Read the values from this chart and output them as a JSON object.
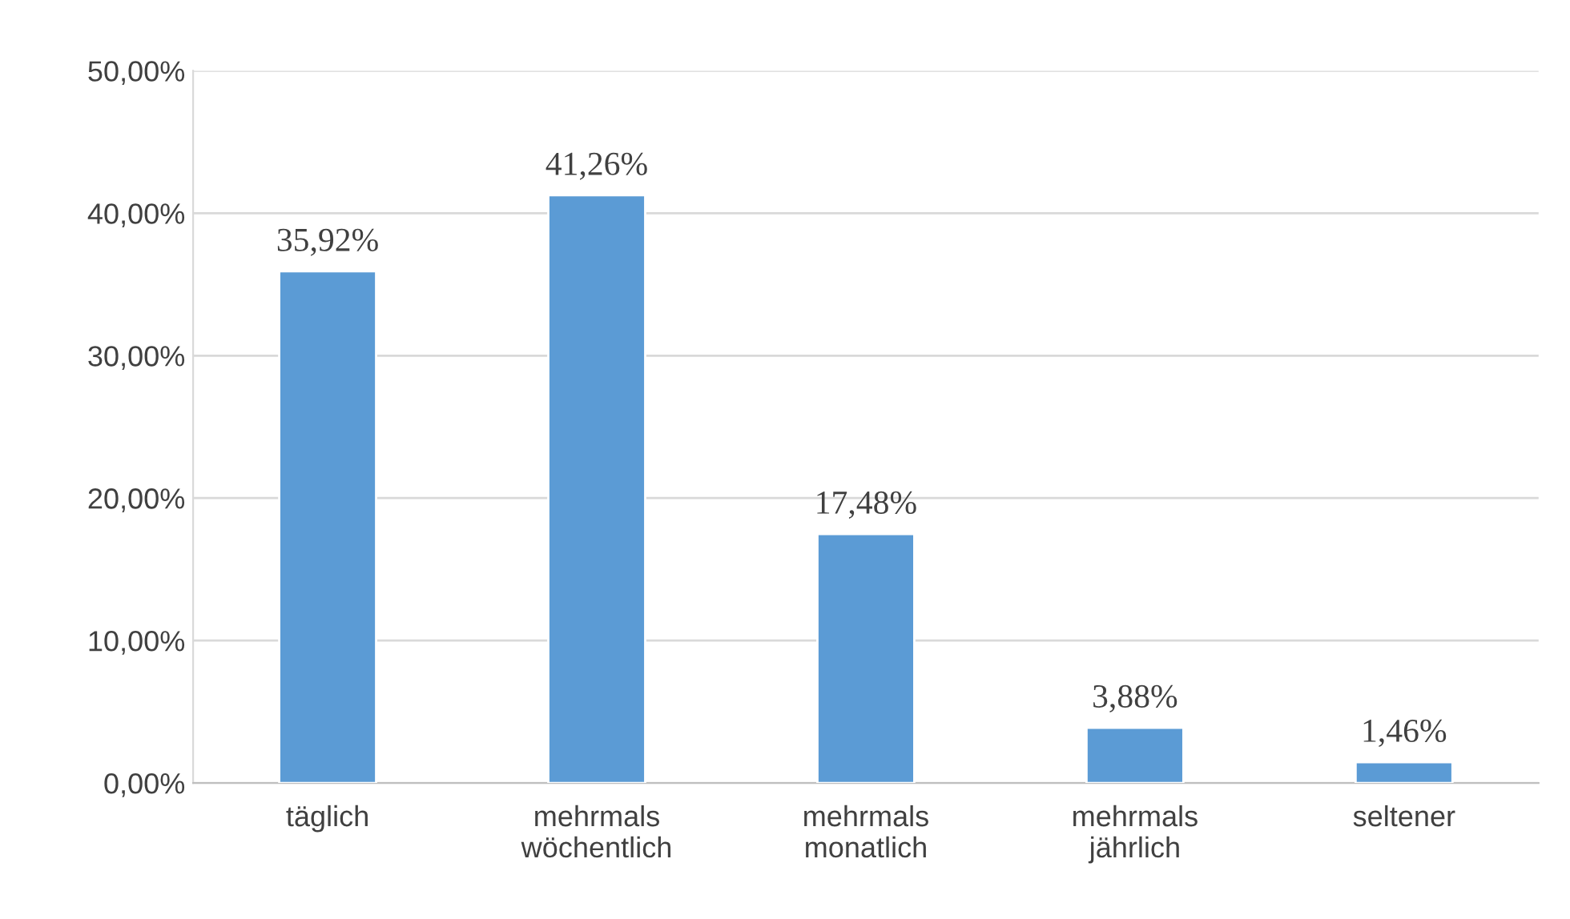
{
  "chart_data": {
    "type": "bar",
    "categories": [
      "täglich",
      "mehrmals\nwöchentlich",
      "mehrmals\nmonatlich",
      "mehrmals\njährlich",
      "seltener"
    ],
    "values": [
      35.92,
      41.26,
      17.48,
      3.88,
      1.46
    ],
    "value_labels": [
      "35,92%",
      "41,26%",
      "17,48%",
      "3,88%",
      "1,46%"
    ],
    "color": "#5b9bd5",
    "ylim": [
      0,
      50
    ],
    "yticks": [
      {
        "value": 0,
        "label": "0,00%"
      },
      {
        "value": 10,
        "label": "10,00%"
      },
      {
        "value": 20,
        "label": "20,00%"
      },
      {
        "value": 30,
        "label": "30,00%"
      },
      {
        "value": 40,
        "label": "40,00%"
      },
      {
        "value": 50,
        "label": "50,00%"
      }
    ],
    "grid": "y",
    "legend": false
  }
}
